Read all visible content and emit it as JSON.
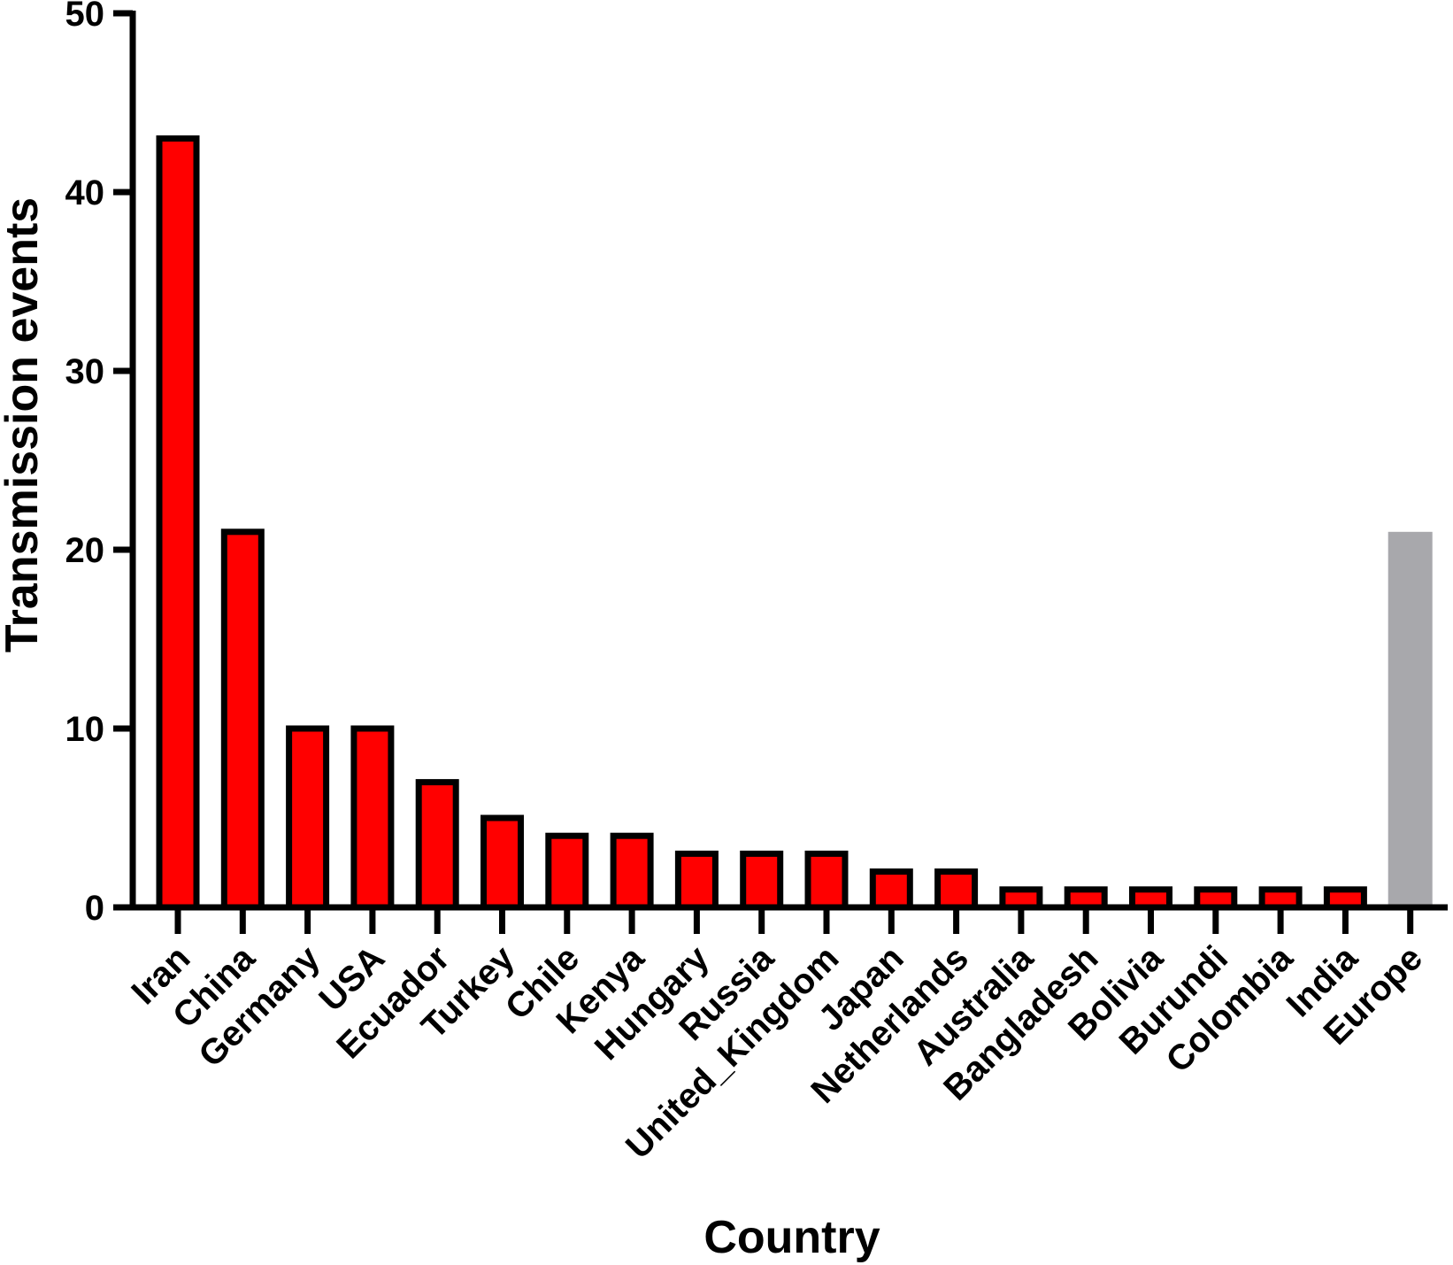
{
  "chart_data": {
    "type": "bar",
    "title": "",
    "xlabel": "Country",
    "ylabel": "Transmission events",
    "ylim": [
      0,
      50
    ],
    "yticks": [
      0,
      10,
      20,
      30,
      40,
      50
    ],
    "grid": false,
    "categories": [
      "Iran",
      "China",
      "Germany",
      "USA",
      "Ecuador",
      "Turkey",
      "Chile",
      "Kenya",
      "Hungary",
      "Russia",
      "United_Kingdom",
      "Japan",
      "Netherlands",
      "Australia",
      "Bangladesh",
      "Bolivia",
      "Burundi",
      "Colombia",
      "India",
      "Europe"
    ],
    "values": [
      43,
      21,
      10,
      10,
      7,
      5,
      4,
      4,
      3,
      3,
      3,
      2,
      2,
      1,
      1,
      1,
      1,
      1,
      1,
      21
    ],
    "colors": {
      "country_fill": "#ff0000",
      "outline": "#000000",
      "europe_fill": "#a8a8ac"
    }
  }
}
